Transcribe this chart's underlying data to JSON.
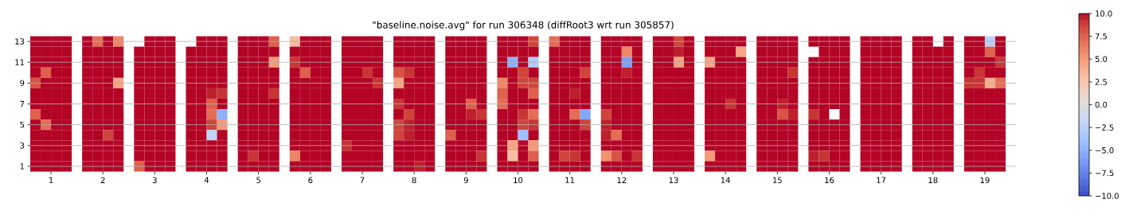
{
  "chart_data": {
    "type": "heatmap",
    "title": "\"baseline.noise.avg\" for run 306348 (diffRoot3 wrt run 305857)",
    "x": [
      0.7,
      0.9,
      1.1,
      1.3,
      1.7,
      1.9,
      2.1,
      2.3,
      2.7,
      2.9,
      3.1,
      3.3,
      3.7,
      3.9,
      4.1,
      4.3,
      4.7,
      4.9,
      5.1,
      5.3,
      5.7,
      5.9,
      6.1,
      6.3,
      6.7,
      6.9,
      7.1,
      7.3,
      7.7,
      7.9,
      8.1,
      8.3,
      8.7,
      8.9,
      9.1,
      9.3,
      9.7,
      9.9,
      10.1,
      10.3,
      10.7,
      10.9,
      11.1,
      11.3,
      11.7,
      11.9,
      12.1,
      12.3,
      12.7,
      12.9,
      13.1,
      13.3,
      13.7,
      13.9,
      14.1,
      14.3,
      14.7,
      14.9,
      15.1,
      15.3,
      15.7,
      15.9,
      16.1,
      16.3,
      16.7,
      16.9,
      17.1,
      17.3,
      17.7,
      17.9,
      18.1,
      18.3,
      18.7,
      18.9,
      19.1,
      19.3
    ],
    "xlim": [
      0.6,
      19.6
    ],
    "xticks": [
      1,
      2,
      3,
      4,
      5,
      6,
      7,
      8,
      9,
      10,
      11,
      12,
      13,
      14,
      15,
      16,
      17,
      18,
      19
    ],
    "y_categories": [
      "13",
      null,
      "11",
      null,
      "9",
      null,
      "7",
      null,
      "5",
      null,
      "3",
      null,
      "1"
    ],
    "cells": [
      [
        10,
        10,
        10,
        10,
        10,
        7,
        10,
        6,
        null,
        10,
        10,
        10,
        null,
        10,
        10,
        10,
        10,
        10,
        10,
        7.5,
        3,
        10,
        10,
        10,
        10,
        10,
        10,
        10,
        10,
        10,
        10,
        10,
        10,
        10,
        10,
        10,
        10,
        10,
        10,
        8.5,
        7,
        10,
        10,
        10,
        10,
        10,
        10,
        10,
        10,
        10,
        8.5,
        10,
        10,
        10,
        10,
        10,
        10,
        10,
        10,
        10,
        10,
        10,
        10,
        10,
        10,
        10,
        10,
        10,
        10,
        10,
        null,
        10,
        10,
        10,
        -2.5,
        10
      ],
      [
        10,
        10,
        10,
        10,
        10,
        10,
        10,
        10,
        10,
        10,
        10,
        10,
        10,
        10,
        10,
        10,
        10,
        10,
        10,
        10,
        10,
        10,
        10,
        10,
        10,
        10,
        10,
        10,
        10,
        10,
        10,
        10,
        10,
        10,
        10,
        10,
        10,
        10,
        10,
        10,
        10,
        10,
        10,
        10,
        10,
        10,
        6,
        10,
        10,
        10,
        9.5,
        10,
        10,
        10,
        10,
        4.5,
        10,
        10,
        10,
        10,
        null,
        10,
        10,
        10,
        10,
        10,
        10,
        10,
        10,
        10,
        10,
        10,
        10,
        10,
        7.5,
        10
      ],
      [
        10,
        10,
        10,
        10,
        10,
        10,
        10,
        10,
        10,
        10,
        10,
        10,
        10,
        10,
        10,
        10,
        10,
        10,
        10,
        5,
        9,
        10,
        10,
        10,
        10,
        10,
        10,
        10,
        10,
        10,
        10,
        10,
        10,
        10,
        10,
        10,
        10,
        -5,
        10,
        -3,
        10,
        10,
        10,
        10,
        10,
        10,
        -6,
        10,
        10,
        10,
        4.5,
        10,
        4.5,
        10,
        10,
        10,
        10,
        10,
        10,
        10,
        10,
        10,
        10,
        10,
        10,
        10,
        10,
        10,
        10,
        10,
        10,
        10,
        10,
        10,
        10,
        9
      ],
      [
        10,
        7.5,
        10,
        10,
        10,
        10,
        10,
        10,
        10,
        10,
        10,
        10,
        10,
        10,
        10,
        10,
        10,
        10,
        10,
        10,
        10,
        7.5,
        10,
        10,
        10,
        10,
        9,
        10,
        8,
        9,
        10,
        10,
        10,
        10,
        10,
        10,
        10,
        10,
        8.5,
        10,
        10,
        10,
        10,
        8.5,
        10,
        10,
        9.5,
        10,
        10,
        10,
        10,
        10,
        10,
        10,
        10,
        10,
        10,
        10,
        10,
        9,
        10,
        10,
        10,
        10,
        10,
        10,
        10,
        10,
        10,
        10,
        10,
        10,
        10,
        9,
        10,
        10
      ],
      [
        8,
        10,
        10,
        10,
        10,
        10,
        10,
        4.5,
        10,
        10,
        10,
        10,
        10,
        10,
        10,
        10,
        10,
        10,
        10,
        10,
        10,
        10,
        10,
        10,
        10,
        10,
        10,
        9,
        4.5,
        10,
        10,
        10,
        10,
        10,
        10,
        10,
        6,
        10,
        8.5,
        8.5,
        10,
        10,
        10,
        10,
        10,
        10,
        10,
        10,
        10,
        10,
        10,
        10,
        10,
        10,
        10,
        10,
        10,
        10,
        10,
        10,
        10,
        10,
        10,
        10,
        10,
        10,
        10,
        10,
        10,
        10,
        10,
        10,
        9,
        9,
        4,
        7
      ],
      [
        10,
        10,
        10,
        10,
        10,
        10,
        10,
        10,
        10,
        10,
        10,
        10,
        10,
        10,
        9.5,
        9,
        10,
        10,
        10,
        9,
        10,
        10,
        10,
        10,
        10,
        10,
        10,
        10,
        10,
        10,
        10,
        10,
        10,
        10,
        10,
        10,
        7.5,
        10,
        10,
        7.5,
        10,
        10,
        9.5,
        10,
        10,
        10,
        10,
        10,
        10,
        10,
        10,
        10,
        10,
        10,
        10,
        10,
        10,
        10,
        10,
        10,
        10,
        10,
        10,
        10,
        10,
        10,
        10,
        10,
        10,
        10,
        10,
        10,
        10,
        10,
        10,
        10
      ],
      [
        10,
        10,
        10,
        10,
        10,
        10,
        10,
        10,
        10,
        10,
        10,
        10,
        10,
        10,
        7.5,
        10,
        10,
        10,
        10,
        10,
        10,
        10,
        10,
        10,
        10,
        10,
        10,
        10,
        9,
        10,
        10,
        10,
        10,
        10,
        7.5,
        10,
        7,
        10,
        10,
        10,
        10,
        10,
        10,
        10,
        10,
        10,
        10,
        10,
        10,
        10,
        10,
        10,
        10,
        10,
        9,
        10,
        10,
        10,
        9.5,
        10,
        10,
        10,
        10,
        10,
        10,
        10,
        10,
        10,
        10,
        10,
        10,
        10,
        10,
        10,
        10,
        10
      ],
      [
        7.5,
        10,
        10,
        10,
        10,
        10,
        10,
        10,
        10,
        10,
        10,
        10,
        10,
        10,
        7,
        -5,
        10,
        10,
        10,
        10,
        10,
        10,
        10,
        10,
        10,
        10,
        10,
        10,
        10,
        8.5,
        10,
        10,
        10,
        10,
        9.5,
        9,
        10,
        10,
        9,
        7,
        10,
        10,
        7,
        -5.5,
        8.5,
        10,
        10,
        10,
        10,
        10,
        10,
        10,
        10,
        10,
        10,
        10,
        10,
        10,
        8,
        9.5,
        9,
        10,
        null,
        10,
        10,
        10,
        10,
        10,
        10,
        10,
        10,
        10,
        10,
        10,
        10,
        10
      ],
      [
        10,
        7,
        10,
        10,
        10,
        10,
        10,
        10,
        10,
        10,
        10,
        10,
        10,
        10,
        8.5,
        5,
        10,
        10,
        10,
        10,
        10,
        10,
        10,
        10,
        10,
        10,
        10,
        10,
        8.5,
        9.5,
        10,
        10,
        10,
        10,
        10,
        10,
        10,
        10,
        8.5,
        9,
        10,
        10,
        10,
        8.5,
        9.5,
        10,
        10,
        10,
        10,
        10,
        10,
        10,
        10,
        10,
        10,
        10,
        10,
        10,
        10,
        10,
        10,
        10,
        10,
        10,
        10,
        10,
        10,
        10,
        10,
        10,
        10,
        10,
        10,
        10,
        10,
        10
      ],
      [
        10,
        10,
        10,
        10,
        10,
        10,
        8.5,
        10,
        10,
        10,
        10,
        10,
        10,
        10,
        -2,
        10,
        10,
        10,
        10,
        10,
        10,
        10,
        10,
        10,
        10,
        10,
        10,
        10,
        8.5,
        9.5,
        10,
        10,
        7.5,
        10,
        10,
        10,
        10,
        10,
        -4,
        10,
        10,
        10,
        10,
        10,
        9.5,
        7,
        10,
        10,
        10,
        10,
        10,
        10,
        10,
        10,
        10,
        10,
        10,
        10,
        10,
        10,
        10,
        10,
        10,
        10,
        10,
        10,
        10,
        10,
        10,
        10,
        10,
        10,
        10,
        10,
        10,
        10
      ],
      [
        10,
        10,
        10,
        10,
        10,
        10,
        10,
        10,
        10,
        10,
        10,
        10,
        10,
        10,
        10,
        10,
        10,
        10,
        10,
        10,
        10,
        10,
        10,
        10,
        9,
        10,
        10,
        10,
        10,
        10,
        10,
        10,
        10,
        10,
        10,
        10,
        10,
        4.5,
        10,
        5,
        10,
        10,
        10,
        10,
        10,
        10,
        10,
        10,
        10,
        10,
        10,
        10,
        10,
        10,
        10,
        10,
        10,
        10,
        10,
        10,
        10,
        10,
        10,
        10,
        10,
        10,
        10,
        10,
        10,
        10,
        10,
        10,
        10,
        10,
        10,
        10
      ],
      [
        10,
        10,
        10,
        10,
        10,
        10,
        10,
        10,
        10,
        10,
        10,
        10,
        10,
        10,
        10,
        10,
        10,
        9,
        10,
        10,
        6,
        10,
        10,
        10,
        10,
        10,
        10,
        10,
        10,
        10,
        10,
        10,
        10,
        10,
        10,
        9,
        10,
        3,
        10,
        7.5,
        10,
        8.5,
        9,
        10,
        5.5,
        8,
        10,
        9,
        10,
        10,
        10,
        10,
        5,
        10,
        10,
        10,
        10,
        10,
        10,
        10,
        9.5,
        9,
        10,
        10,
        10,
        10,
        10,
        10,
        10,
        10,
        10,
        10,
        10,
        10,
        10,
        10
      ],
      [
        10,
        10,
        10,
        10,
        10,
        10,
        10,
        10,
        7.5,
        10,
        10,
        10,
        10,
        10,
        10,
        10,
        10,
        10,
        10,
        10,
        10,
        10,
        10,
        10,
        10,
        10,
        10,
        10,
        10,
        10,
        9.5,
        10,
        10,
        10,
        10,
        10,
        10,
        10,
        10,
        10,
        10,
        10,
        10,
        10,
        10,
        10,
        10,
        10,
        10,
        10,
        10,
        10,
        10,
        10,
        10,
        10,
        10,
        10,
        10,
        10,
        10,
        10,
        10,
        10,
        10,
        10,
        10,
        10,
        10,
        10,
        10,
        10,
        10,
        10,
        10,
        10
      ]
    ],
    "clim": [
      -10,
      10
    ],
    "cticks": [
      {
        "value": -10,
        "label": "−10.0"
      },
      {
        "value": -7.5,
        "label": "−7.5"
      },
      {
        "value": -5,
        "label": "−5.0"
      },
      {
        "value": -2.5,
        "label": "−2.5"
      },
      {
        "value": 0,
        "label": "0.0"
      },
      {
        "value": 2.5,
        "label": "2.5"
      },
      {
        "value": 5,
        "label": "5.0"
      },
      {
        "value": 7.5,
        "label": "7.5"
      },
      {
        "value": 10,
        "label": "10.0"
      }
    ],
    "grid": "y"
  }
}
